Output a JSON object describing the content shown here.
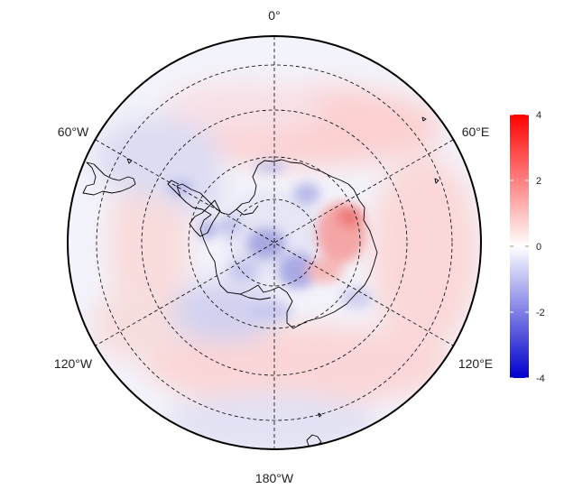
{
  "map": {
    "projection": "south-polar-stereographic",
    "graticule_style": "dashed",
    "meridian_labels": {
      "top": "0°",
      "upper_right": "60°E",
      "lower_right": "120°E",
      "bottom": "180°W",
      "lower_left": "120°W",
      "upper_left": "60°W"
    }
  },
  "colorbar": {
    "min": -4,
    "max": 4,
    "ticks": [
      "4",
      "2",
      "0",
      "-2",
      "-4"
    ],
    "colors": {
      "low": "#0000cc",
      "mid": "#ffffff",
      "high": "#ff0000"
    }
  }
}
